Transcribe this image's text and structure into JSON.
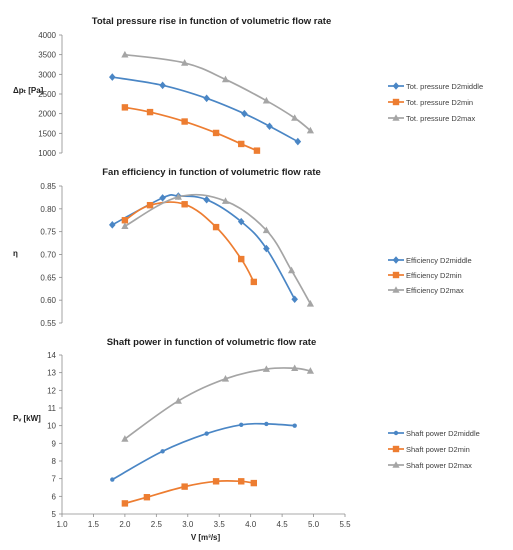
{
  "figure": {
    "xaxis_label": "V [m³/s]"
  },
  "chart_data": [
    {
      "type": "line",
      "title": "Total pressure rise in function of volumetric flow rate",
      "ylabel": "Δpₜ [Pa]",
      "ylim": [
        1000,
        4000
      ],
      "yticks": [
        1000,
        1500,
        2000,
        2500,
        3000,
        3500,
        4000
      ],
      "ytick_labels": [
        "1000",
        "1500",
        "2000",
        "2500",
        "3000",
        "3500",
        "4000"
      ],
      "legend_position": "right",
      "grid": false,
      "series": [
        {
          "name": "Tot. pressure D2middle",
          "color": "#4a86c5",
          "marker": "diamond",
          "x": [
            1.8,
            2.6,
            3.3,
            3.9,
            4.3,
            4.75
          ],
          "y": [
            2930,
            2720,
            2390,
            2000,
            1680,
            1290
          ]
        },
        {
          "name": "Tot. pressure D2min",
          "color": "#ed7d31",
          "marker": "square",
          "x": [
            2.0,
            2.4,
            2.95,
            3.45,
            3.85,
            4.1
          ],
          "y": [
            2160,
            2040,
            1800,
            1510,
            1230,
            1060
          ]
        },
        {
          "name": "Tot. pressure D2max",
          "color": "#a5a5a5",
          "marker": "triangle",
          "x": [
            2.0,
            2.95,
            3.6,
            4.25,
            4.7,
            4.95
          ],
          "y": [
            3500,
            3290,
            2870,
            2330,
            1890,
            1570
          ]
        }
      ]
    },
    {
      "type": "line",
      "title": "Fan efficiency in function of volumetric flow rate",
      "ylabel": "η",
      "ylim": [
        0.55,
        0.85
      ],
      "yticks": [
        0.55,
        0.6,
        0.65,
        0.7,
        0.75,
        0.8,
        0.85
      ],
      "ytick_labels": [
        "0.55",
        "0.60",
        "0.65",
        "0.70",
        "0.75",
        "0.80",
        "0.85"
      ],
      "legend_position": "right",
      "grid": false,
      "series": [
        {
          "name": "Efficiency D2middle",
          "color": "#4a86c5",
          "marker": "diamond",
          "x": [
            1.8,
            2.6,
            2.85,
            3.3,
            3.85,
            4.25,
            4.7
          ],
          "y": [
            0.765,
            0.824,
            0.828,
            0.82,
            0.772,
            0.713,
            0.602
          ]
        },
        {
          "name": "Efficiency D2min",
          "color": "#ed7d31",
          "marker": "square",
          "x": [
            2.0,
            2.4,
            2.95,
            3.45,
            3.85,
            4.05
          ],
          "y": [
            0.775,
            0.808,
            0.81,
            0.76,
            0.69,
            0.64
          ]
        },
        {
          "name": "Efficiency D2max",
          "color": "#a5a5a5",
          "marker": "triangle",
          "x": [
            2.0,
            2.85,
            3.6,
            4.25,
            4.65,
            4.95
          ],
          "y": [
            0.762,
            0.826,
            0.817,
            0.753,
            0.665,
            0.592
          ]
        }
      ]
    },
    {
      "type": "line",
      "title": "Shaft power in function of volumetric flow rate",
      "xlabel": "V [m³/s]",
      "ylabel": "Pᵥ [kW]",
      "xlim": [
        1.0,
        5.5
      ],
      "xticks": [
        1.0,
        1.5,
        2.0,
        2.5,
        3.0,
        3.5,
        4.0,
        4.5,
        5.0,
        5.5
      ],
      "xtick_labels": [
        "1.0",
        "1.5",
        "2.0",
        "2.5",
        "3.0",
        "3.5",
        "4.0",
        "4.5",
        "5.0",
        "5.5"
      ],
      "ylim": [
        5,
        14
      ],
      "yticks": [
        5,
        6,
        7,
        8,
        9,
        10,
        11,
        12,
        13,
        14
      ],
      "ytick_labels": [
        "5",
        "6",
        "7",
        "8",
        "9",
        "10",
        "11",
        "12",
        "13",
        "14"
      ],
      "legend_position": "right",
      "grid": false,
      "series": [
        {
          "name": "Shaft power D2middle",
          "color": "#4a86c5",
          "marker": "dot",
          "x": [
            1.8,
            2.6,
            3.3,
            3.85,
            4.25,
            4.7
          ],
          "y": [
            6.95,
            8.55,
            9.55,
            10.05,
            10.1,
            10.0
          ]
        },
        {
          "name": "Shaft power D2min",
          "color": "#ed7d31",
          "marker": "square",
          "x": [
            2.0,
            2.35,
            2.95,
            3.45,
            3.85,
            4.05
          ],
          "y": [
            5.6,
            5.95,
            6.55,
            6.85,
            6.85,
            6.75
          ]
        },
        {
          "name": "Shaft power D2max",
          "color": "#a5a5a5",
          "marker": "triangle",
          "x": [
            2.0,
            2.85,
            3.6,
            4.25,
            4.7,
            4.95
          ],
          "y": [
            9.25,
            11.4,
            12.65,
            13.2,
            13.25,
            13.1
          ]
        }
      ]
    }
  ]
}
